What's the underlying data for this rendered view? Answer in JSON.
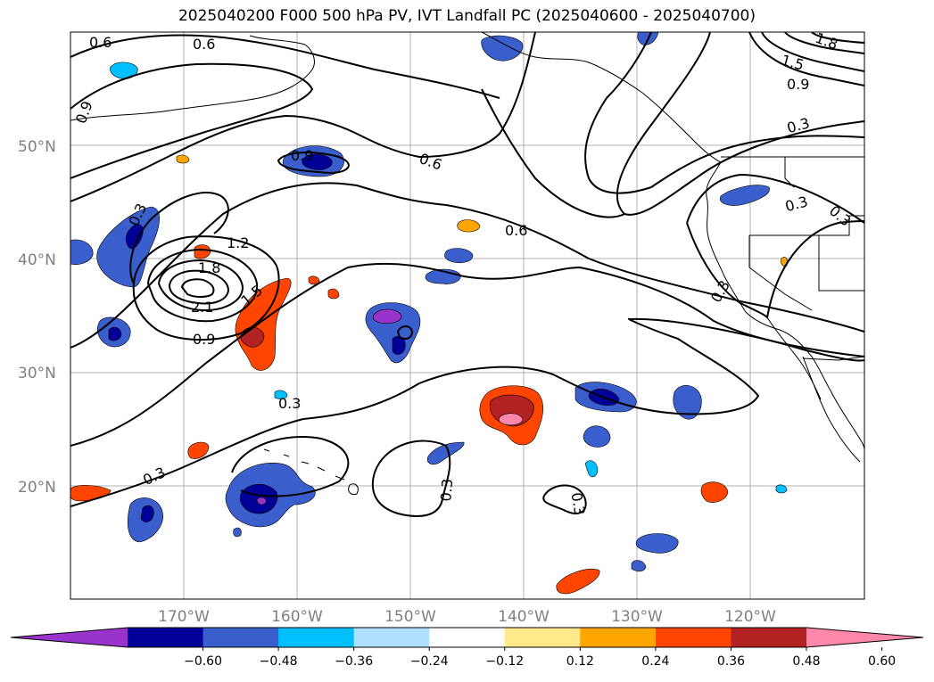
{
  "title": "2025040200 F000 500 hPa PV, IVT Landfall PC (2025040600 - 2025040700)",
  "lat_labels": [
    "50°N",
    "40°N",
    "30°N",
    "20°N"
  ],
  "lon_labels": [
    "170°W",
    "160°W",
    "150°W",
    "140°W",
    "130°W",
    "120°W"
  ],
  "contour_labels": [
    "0.6",
    "0.6",
    "0.9",
    "0.9",
    "0.3",
    "1.2",
    "1.8",
    "2.1",
    "1.5",
    "0.9",
    "0.6",
    "0.6",
    "0.3",
    "0.3",
    "0.3",
    "0.3",
    "1.8",
    "1.5",
    "0.9",
    "0.3",
    "0.3",
    "0.3",
    "0.3"
  ],
  "colorbar": {
    "ticks": [
      "−0.60",
      "−0.48",
      "−0.36",
      "−0.24",
      "−0.12",
      "0.12",
      "0.24",
      "0.36",
      "0.48",
      "0.60"
    ],
    "colors": [
      "#9933cc",
      "#000099",
      "#3a5fcd",
      "#00bfff",
      "#b0e0ff",
      "#ffffff",
      "#ffe98a",
      "#ffa500",
      "#ff4500",
      "#b22222",
      "#ff88aa"
    ]
  },
  "chart_data": {
    "type": "heatmap",
    "title": "2025040200 F000 500 hPa PV, IVT Landfall PC (2025040600 - 2025040700)",
    "lat_range": [
      10,
      60
    ],
    "lon_range": [
      -180,
      -110
    ],
    "filled_field_levels": [
      -0.6,
      -0.48,
      -0.36,
      -0.24,
      -0.12,
      0.12,
      0.24,
      0.36,
      0.48,
      0.6
    ],
    "contour_levels": [
      0.3,
      0.6,
      0.9,
      1.2,
      1.5,
      1.8,
      2.1
    ],
    "grid": true
  }
}
